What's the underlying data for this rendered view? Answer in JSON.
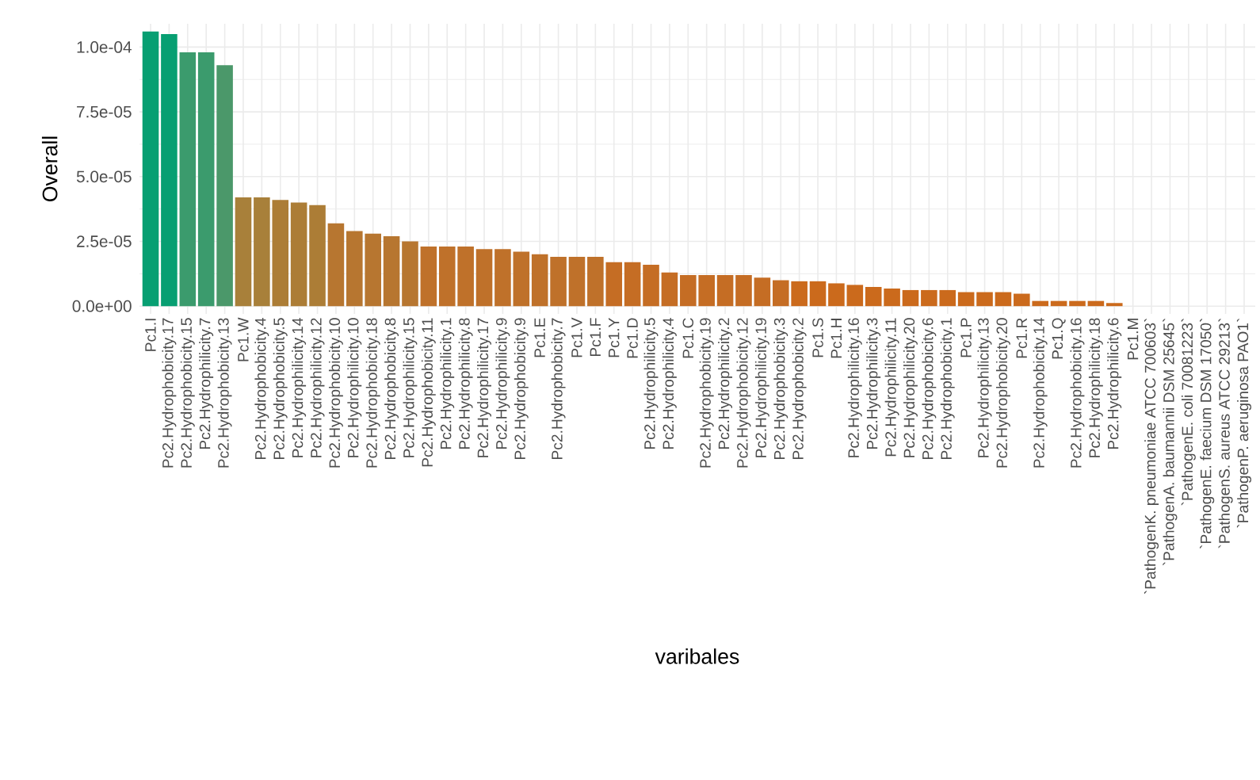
{
  "chart_data": {
    "type": "bar",
    "xlabel": "varibales",
    "ylabel": "Overall",
    "categories": [
      "Pc1.I",
      "Pc2.Hydrophobicity.17",
      "Pc2.Hydrophobicity.15",
      "Pc2.Hydrophilicity.7",
      "Pc2.Hydrophobicity.13",
      "Pc1.W",
      "Pc2.Hydrophobicity.4",
      "Pc2.Hydrophobicity.5",
      "Pc2.Hydrophilicity.14",
      "Pc2.Hydrophilicity.12",
      "Pc2.Hydrophobicity.10",
      "Pc2.Hydrophilicity.10",
      "Pc2.Hydrophobicity.18",
      "Pc2.Hydrophobicity.8",
      "Pc2.Hydrophilicity.15",
      "Pc2.Hydrophobicity.11",
      "Pc2.Hydrophilicity.1",
      "Pc2.Hydrophilicity.8",
      "Pc2.Hydrophilicity.17",
      "Pc2.Hydrophilicity.9",
      "Pc2.Hydrophobicity.9",
      "Pc1.E",
      "Pc2.Hydrophobicity.7",
      "Pc1.V",
      "Pc1.F",
      "Pc1.Y",
      "Pc1.D",
      "Pc2.Hydrophilicity.5",
      "Pc2.Hydrophilicity.4",
      "Pc1.C",
      "Pc2.Hydrophobicity.19",
      "Pc2.Hydrophilicity.2",
      "Pc2.Hydrophobicity.12",
      "Pc2.Hydrophilicity.19",
      "Pc2.Hydrophobicity.3",
      "Pc2.Hydrophobicity.2",
      "Pc1.S",
      "Pc1.H",
      "Pc2.Hydrophilicity.16",
      "Pc2.Hydrophilicity.3",
      "Pc2.Hydrophilicity.11",
      "Pc2.Hydrophilicity.20",
      "Pc2.Hydrophobicity.6",
      "Pc2.Hydrophobicity.1",
      "Pc1.P",
      "Pc2.Hydrophilicity.13",
      "Pc2.Hydrophobicity.20",
      "Pc1.R",
      "Pc2.Hydrophobicity.14",
      "Pc1.Q",
      "Pc2.Hydrophobicity.16",
      "Pc2.Hydrophilicity.18",
      "Pc2.Hydrophilicity.6",
      "Pc1.M",
      "`PathogenK. pneumoniae ATCC 700603`",
      "`PathogenA. baumannii DSM 25645`",
      "`PathogenE. coli 70081223`",
      "`PathogenE. faecium DSM 17050`",
      "`PathogenS. aureus ATCC 29213`",
      "`PathogenP. aeruginosa PAO1`"
    ],
    "values": [
      0.000106,
      0.000105,
      9.8e-05,
      9.8e-05,
      9.3e-05,
      4.2e-05,
      4.2e-05,
      4.1e-05,
      4e-05,
      3.9e-05,
      3.2e-05,
      2.9e-05,
      2.8e-05,
      2.7e-05,
      2.5e-05,
      2.3e-05,
      2.3e-05,
      2.3e-05,
      2.2e-05,
      2.2e-05,
      2.1e-05,
      2e-05,
      1.9e-05,
      1.9e-05,
      1.9e-05,
      1.7e-05,
      1.7e-05,
      1.6e-05,
      1.3e-05,
      1.2e-05,
      1.2e-05,
      1.2e-05,
      1.2e-05,
      1.1e-05,
      1e-05,
      9.6e-06,
      9.6e-06,
      8.8e-06,
      8.2e-06,
      7.4e-06,
      6.8e-06,
      6.2e-06,
      6.2e-06,
      6.2e-06,
      5.4e-06,
      5.4e-06,
      5.4e-06,
      4.8e-06,
      2e-06,
      2e-06,
      2e-06,
      2e-06,
      1.2e-06,
      0,
      0,
      0,
      0,
      0,
      0,
      0
    ],
    "colors": [
      "#079f72",
      "#079f72",
      "#3b9b6d",
      "#3b9b6d",
      "#4b986a",
      "#a8803a",
      "#a8803a",
      "#ac7d36",
      "#ac7d36",
      "#ac7d36",
      "#b77630",
      "#b77630",
      "#b77630",
      "#b77630",
      "#b77630",
      "#bf712a",
      "#bf712a",
      "#bf712a",
      "#bf712a",
      "#bf712a",
      "#bf712a",
      "#bf712a",
      "#bf712a",
      "#bf712a",
      "#bf712a",
      "#c56d24",
      "#c56d24",
      "#c56d24",
      "#c56d24",
      "#c56d24",
      "#c56d24",
      "#c56d24",
      "#c56d24",
      "#c56d24",
      "#c56d24",
      "#cb6a1c",
      "#cb6a1c",
      "#cb6a1c",
      "#cb6a1c",
      "#cb6a1c",
      "#cb6a1c",
      "#cb6a1c",
      "#cb6a1c",
      "#cb6a1c",
      "#cb6a1c",
      "#cb6a1c",
      "#cb6a1c",
      "#cb6a1c",
      "#cb6a1c",
      "#cb6a1c",
      "#cb6a1c",
      "#cb6a1c",
      "#cb6a1c",
      "#cb6a1c",
      "#d06818",
      "#d06818",
      "#d06818",
      "#d06818",
      "#d06818",
      "#d06818"
    ],
    "ylim": [
      -3e-06,
      0.000109
    ],
    "yticks": [
      {
        "value": 0,
        "label": "0.0e+00"
      },
      {
        "value": 2.5e-05,
        "label": "2.5e-05"
      },
      {
        "value": 5e-05,
        "label": "5.0e-05"
      },
      {
        "value": 7.5e-05,
        "label": "7.5e-05"
      },
      {
        "value": 0.0001,
        "label": "1.0e-04"
      }
    ],
    "grid": true
  }
}
